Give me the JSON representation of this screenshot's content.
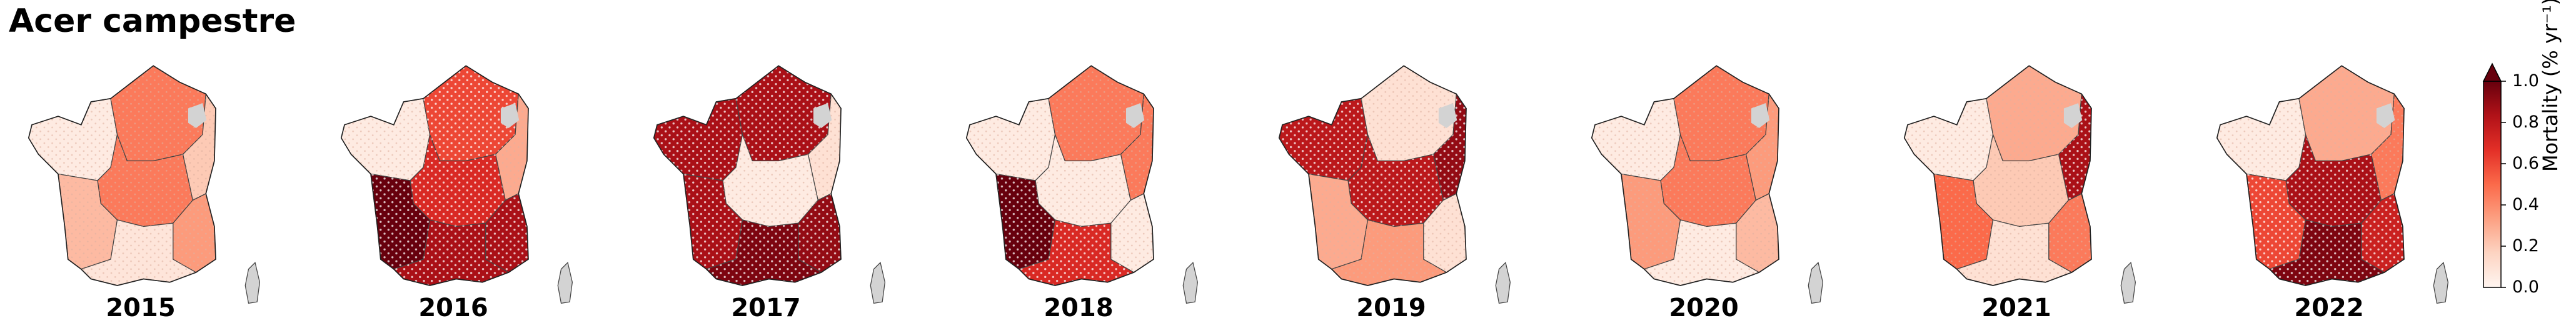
{
  "title": "Acer campestre",
  "colorbar": {
    "label": "Mortality (% yr⁻¹)",
    "ticks": [
      "0.0",
      "0.2",
      "0.4",
      "0.6",
      "0.8",
      "1.0"
    ],
    "colormap": [
      "#fff5f0",
      "#fdd4c2",
      "#fca082",
      "#fb6a4a",
      "#e32f27",
      "#b11218",
      "#67000d"
    ],
    "extend": "max",
    "range": [
      0,
      1.0
    ]
  },
  "no_data_color": "#d3d3d3",
  "regions": [
    "NW",
    "NE",
    "E",
    "C",
    "SW",
    "SE",
    "S",
    "Corsica"
  ],
  "maps": [
    {
      "year": "2015",
      "mortality": {
        "NW": 0.05,
        "NE": 0.45,
        "E": 0.2,
        "C": 0.45,
        "SW": 0.25,
        "SE": 0.35,
        "S": 0.08
      }
    },
    {
      "year": "2016",
      "mortality": {
        "NW": 0.05,
        "NE": 0.6,
        "E": 0.3,
        "C": 0.7,
        "SW": 1.0,
        "SE": 0.85,
        "S": 0.85
      }
    },
    {
      "year": "2017",
      "mortality": {
        "NW": 0.85,
        "NE": 0.85,
        "E": 0.1,
        "C": 0.05,
        "SW": 0.85,
        "SE": 0.9,
        "S": 0.95
      }
    },
    {
      "year": "2018",
      "mortality": {
        "NW": 0.05,
        "NE": 0.45,
        "E": 0.45,
        "C": 0.05,
        "SW": 1.0,
        "SE": 0.05,
        "S": 0.7
      }
    },
    {
      "year": "2019",
      "mortality": {
        "NW": 0.8,
        "NE": 0.1,
        "E": 0.9,
        "C": 0.8,
        "SW": 0.3,
        "SE": 0.1,
        "S": 0.35
      }
    },
    {
      "year": "2020",
      "mortality": {
        "NW": 0.05,
        "NE": 0.45,
        "E": 0.35,
        "C": 0.45,
        "SW": 0.35,
        "SE": 0.25,
        "S": 0.05
      }
    },
    {
      "year": "2021",
      "mortality": {
        "NW": 0.05,
        "NE": 0.3,
        "E": 0.85,
        "C": 0.2,
        "SW": 0.5,
        "SE": 0.45,
        "S": 0.1
      }
    },
    {
      "year": "2022",
      "mortality": {
        "NW": 0.05,
        "NE": 0.3,
        "E": 0.45,
        "C": 0.85,
        "SW": 0.6,
        "SE": 0.75,
        "S": 0.95
      }
    }
  ]
}
